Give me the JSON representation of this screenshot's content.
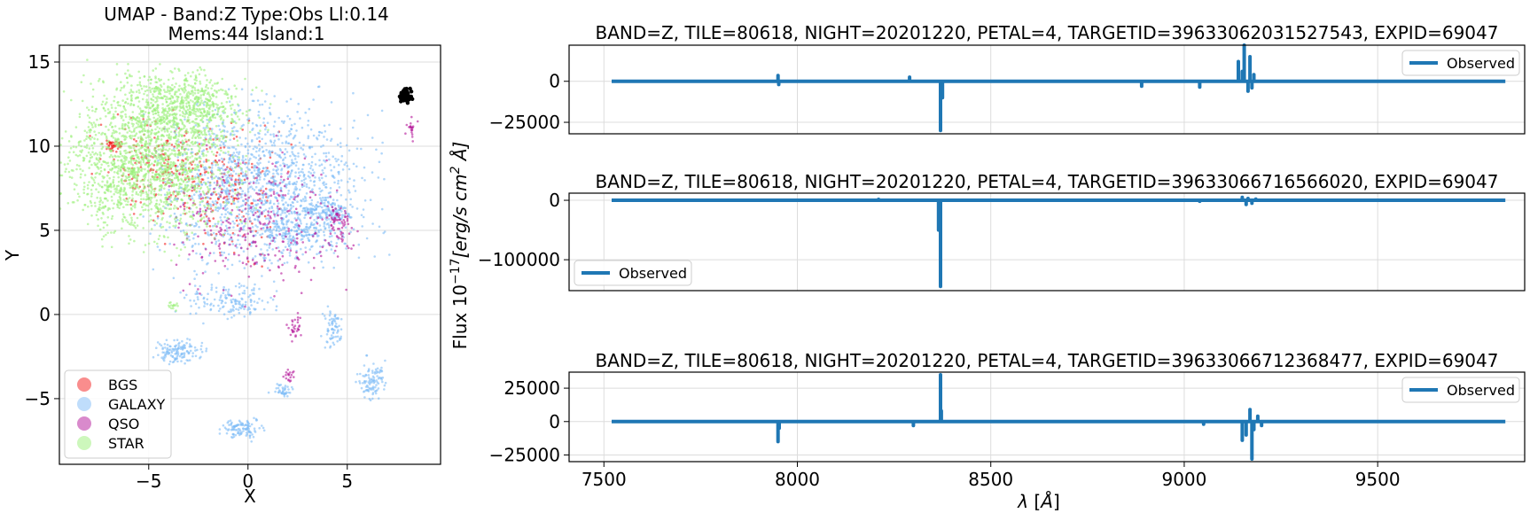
{
  "chart_data": [
    {
      "type": "scatter",
      "title": "UMAP  -  Band:Z Type:Obs Ll:0.14",
      "subtitle": "Mems:44 Island:1",
      "xlabel": "X",
      "ylabel": "Y",
      "xlim": [
        -9.5,
        9.7
      ],
      "ylim": [
        -8.9,
        16
      ],
      "xticks": [
        -5,
        0,
        5
      ],
      "xtick_labels": [
        "−5",
        "0",
        "5"
      ],
      "yticks": [
        -5,
        0,
        5,
        10,
        15
      ],
      "ytick_labels": [
        "−5",
        "0",
        "5",
        "10",
        "15"
      ],
      "grid": true,
      "legend_position": "lower-left",
      "series": [
        {
          "name": "BGS",
          "color": "#f31c1c",
          "clusters": [
            {
              "cx": -4.5,
              "cy": 9.0,
              "rx": 2.5,
              "ry": 2.0,
              "n": 150
            },
            {
              "cx": -1.5,
              "cy": 7.5,
              "rx": 2.5,
              "ry": 3.0,
              "n": 220
            },
            {
              "cx": -6.8,
              "cy": 10.0,
              "rx": 0.35,
              "ry": 0.3,
              "n": 40
            }
          ]
        },
        {
          "name": "GALAXY",
          "color": "#7fbcf7",
          "clusters": [
            {
              "cx": 0.8,
              "cy": 7.6,
              "rx": 4.0,
              "ry": 3.8,
              "n": 1400
            },
            {
              "cx": 3.9,
              "cy": 6.2,
              "rx": 1.0,
              "ry": 0.6,
              "n": 120
            },
            {
              "cx": 2.5,
              "cy": 5.0,
              "rx": 1.5,
              "ry": 0.7,
              "n": 160
            },
            {
              "cx": -1.0,
              "cy": 0.8,
              "rx": 1.8,
              "ry": 0.8,
              "n": 150
            },
            {
              "cx": -3.5,
              "cy": -2.2,
              "rx": 0.9,
              "ry": 0.6,
              "n": 130
            },
            {
              "cx": -0.2,
              "cy": -6.8,
              "rx": 0.8,
              "ry": 0.5,
              "n": 110
            },
            {
              "cx": 6.3,
              "cy": -4.0,
              "rx": 0.6,
              "ry": 0.9,
              "n": 100
            },
            {
              "cx": 4.3,
              "cy": -0.8,
              "rx": 0.4,
              "ry": 0.9,
              "n": 70
            },
            {
              "cx": 1.8,
              "cy": -4.5,
              "rx": 0.5,
              "ry": 0.3,
              "n": 40
            }
          ]
        },
        {
          "name": "QSO",
          "color": "#b4169a",
          "clusters": [
            {
              "cx": 0.6,
              "cy": 5.5,
              "rx": 3.4,
              "ry": 3.2,
              "n": 300
            },
            {
              "cx": 4.6,
              "cy": 5.2,
              "rx": 0.5,
              "ry": 1.0,
              "n": 60
            },
            {
              "cx": 2.4,
              "cy": -0.8,
              "rx": 0.3,
              "ry": 0.6,
              "n": 30
            },
            {
              "cx": 2.1,
              "cy": -3.7,
              "rx": 0.3,
              "ry": 0.3,
              "n": 18
            },
            {
              "cx": 8.2,
              "cy": 11.0,
              "rx": 0.25,
              "ry": 0.5,
              "n": 20
            }
          ]
        },
        {
          "name": "STAR",
          "color": "#9bf07a",
          "clusters": [
            {
              "cx": -5.0,
              "cy": 9.3,
              "rx": 3.3,
              "ry": 3.6,
              "n": 1800
            },
            {
              "cx": -3.0,
              "cy": 12.5,
              "rx": 2.5,
              "ry": 1.5,
              "n": 500
            },
            {
              "cx": -3.8,
              "cy": 0.5,
              "rx": 0.25,
              "ry": 0.25,
              "n": 15
            }
          ]
        },
        {
          "name": "",
          "color": "#000000",
          "clusters": [
            {
              "cx": 7.9,
              "cy": 13.0,
              "rx": 0.3,
              "ry": 0.3,
              "n": 60
            }
          ]
        }
      ]
    },
    {
      "type": "line",
      "title": "BAND=Z, TILE=80618, NIGHT=20201220, PETAL=4, TARGETID=39633062031527543, EXPID=69047",
      "xlim": [
        7410,
        9880
      ],
      "ylim": [
        -32000,
        22000
      ],
      "yticks": [
        -25000,
        0
      ],
      "ytick_labels": [
        "−25000",
        "0"
      ],
      "legend_position": "top-right",
      "color": "#1f77b4",
      "series": [
        {
          "name": "Observed",
          "x_start": 7520,
          "x_end": 9830,
          "spikes": [
            [
              7950,
              3500
            ],
            [
              7952,
              -2000
            ],
            [
              8290,
              2500
            ],
            [
              8370,
              -30000
            ],
            [
              8375,
              -10000
            ],
            [
              8890,
              -3000
            ],
            [
              9040,
              -3500
            ],
            [
              9140,
              12000
            ],
            [
              9150,
              6000
            ],
            [
              9155,
              22000
            ],
            [
              9165,
              -6000
            ],
            [
              9170,
              15000
            ],
            [
              9175,
              -4000
            ],
            [
              9180,
              4000
            ]
          ]
        }
      ]
    },
    {
      "type": "line",
      "title": "BAND=Z, TILE=80618, NIGHT=20201220, PETAL=4, TARGETID=39633066716566020, EXPID=69047",
      "xlim": [
        7410,
        9880
      ],
      "ylim": [
        -152000,
        12000
      ],
      "yticks": [
        -100000,
        0
      ],
      "ytick_labels": [
        "−100000",
        "0"
      ],
      "legend_position": "lower-left",
      "color": "#1f77b4",
      "series": [
        {
          "name": "Observed",
          "x_start": 7520,
          "x_end": 9830,
          "spikes": [
            [
              8210,
              1500
            ],
            [
              8370,
              -145000
            ],
            [
              8365,
              -50000
            ],
            [
              9150,
              5000
            ],
            [
              9160,
              -7000
            ],
            [
              9165,
              3000
            ],
            [
              9175,
              -5000
            ],
            [
              9185,
              2000
            ],
            [
              9040,
              -1500
            ]
          ]
        }
      ]
    },
    {
      "type": "line",
      "title": "BAND=Z, TILE=80618, NIGHT=20201220, PETAL=4, TARGETID=39633066712368477, EXPID=69047",
      "xlabel": "λ [Å]",
      "xlim": [
        7410,
        9880
      ],
      "ylim": [
        -30000,
        37000
      ],
      "xticks": [
        7500,
        8000,
        8500,
        9000,
        9500
      ],
      "xtick_labels": [
        "7500",
        "8000",
        "8500",
        "9000",
        "9500"
      ],
      "yticks": [
        -25000,
        0,
        25000
      ],
      "ytick_labels": [
        "−25000",
        "0",
        "25000"
      ],
      "legend_position": "top-right",
      "color": "#1f77b4",
      "series": [
        {
          "name": "Observed",
          "x_start": 7520,
          "x_end": 9830,
          "spikes": [
            [
              7950,
              -15000
            ],
            [
              7953,
              -5000
            ],
            [
              8300,
              -3000
            ],
            [
              8370,
              35000
            ],
            [
              8372,
              8000
            ],
            [
              9150,
              -14000
            ],
            [
              9160,
              -10000
            ],
            [
              9170,
              9000
            ],
            [
              9175,
              -28000
            ],
            [
              9180,
              -6000
            ],
            [
              9190,
              4000
            ],
            [
              9200,
              -3000
            ],
            [
              9050,
              -2000
            ]
          ]
        }
      ]
    }
  ],
  "shared_ylabel": "Flux 10⁻¹⁷[erg/s cm² Å]"
}
